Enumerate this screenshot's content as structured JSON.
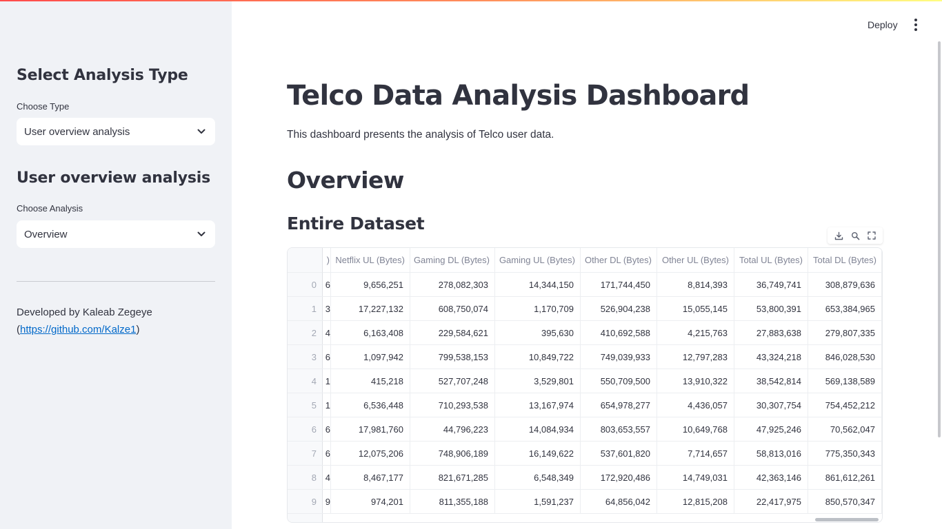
{
  "sidebar": {
    "section1_title": "Select Analysis Type",
    "type_label": "Choose Type",
    "type_value": "User overview analysis",
    "section2_title": "User overview analysis",
    "analysis_label": "Choose Analysis",
    "analysis_value": "Overview",
    "developer_text": "Developed by Kaleab Zegeye",
    "developer_link": "https://github.com/Kalze1"
  },
  "header": {
    "deploy_label": "Deploy"
  },
  "main": {
    "title": "Telco Data Analysis Dashboard",
    "description": "This dashboard presents the analysis of Telco user data.",
    "section_title": "Overview",
    "subsection_title": "Entire Dataset"
  },
  "table": {
    "partial_header": ")",
    "columns": [
      "Netflix UL (Bytes)",
      "Gaming DL (Bytes)",
      "Gaming UL (Bytes)",
      "Other DL (Bytes)",
      "Other UL (Bytes)",
      "Total UL (Bytes)",
      "Total DL (Bytes)"
    ],
    "rows": [
      {
        "index": "0",
        "partial": "6",
        "cells": [
          "9,656,251",
          "278,082,303",
          "14,344,150",
          "171,744,450",
          "8,814,393",
          "36,749,741",
          "308,879,636"
        ]
      },
      {
        "index": "1",
        "partial": "3",
        "cells": [
          "17,227,132",
          "608,750,074",
          "1,170,709",
          "526,904,238",
          "15,055,145",
          "53,800,391",
          "653,384,965"
        ]
      },
      {
        "index": "2",
        "partial": "4",
        "cells": [
          "6,163,408",
          "229,584,621",
          "395,630",
          "410,692,588",
          "4,215,763",
          "27,883,638",
          "279,807,335"
        ]
      },
      {
        "index": "3",
        "partial": "6",
        "cells": [
          "1,097,942",
          "799,538,153",
          "10,849,722",
          "749,039,933",
          "12,797,283",
          "43,324,218",
          "846,028,530"
        ]
      },
      {
        "index": "4",
        "partial": "1",
        "cells": [
          "415,218",
          "527,707,248",
          "3,529,801",
          "550,709,500",
          "13,910,322",
          "38,542,814",
          "569,138,589"
        ]
      },
      {
        "index": "5",
        "partial": "1",
        "cells": [
          "6,536,448",
          "710,293,538",
          "13,167,974",
          "654,978,277",
          "4,436,057",
          "30,307,754",
          "754,452,212"
        ]
      },
      {
        "index": "6",
        "partial": "6",
        "cells": [
          "17,981,760",
          "44,796,223",
          "14,084,934",
          "803,653,557",
          "10,649,768",
          "47,925,246",
          "70,562,047"
        ]
      },
      {
        "index": "7",
        "partial": "6",
        "cells": [
          "12,075,206",
          "748,906,189",
          "16,149,622",
          "537,601,820",
          "7,714,657",
          "58,813,016",
          "775,350,343"
        ]
      },
      {
        "index": "8",
        "partial": "4",
        "cells": [
          "8,467,177",
          "821,671,285",
          "6,548,349",
          "172,920,486",
          "14,749,031",
          "42,363,146",
          "861,612,261"
        ]
      },
      {
        "index": "9",
        "partial": "9",
        "cells": [
          "974,201",
          "811,355,188",
          "1,591,237",
          "64,856,042",
          "12,815,208",
          "22,417,975",
          "850,570,347"
        ]
      }
    ]
  },
  "icons": {
    "chevron": "chevron-down-icon",
    "download": "download-icon",
    "search": "search-icon",
    "fullscreen": "fullscreen-icon",
    "menu": "more-vertical-icon"
  },
  "colors": {
    "sidebar_bg": "#f0f2f6",
    "link": "#0068c9",
    "text": "#31333f",
    "header_text": "#808495"
  }
}
